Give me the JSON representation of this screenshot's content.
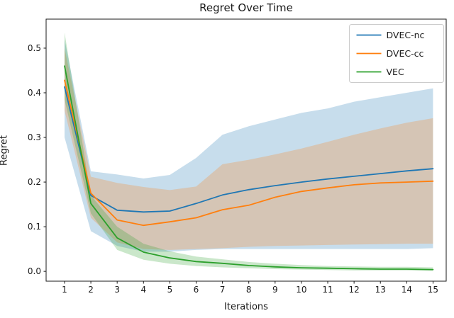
{
  "figure": {
    "title": "Regret Over Time",
    "xlabel": "Iterations",
    "ylabel": "Regret"
  },
  "chart_data": {
    "type": "line",
    "title": "Regret Over Time",
    "xlabel": "Iterations",
    "ylabel": "Regret",
    "grid": false,
    "legend_position": "upper right",
    "xlim": [
      0.3,
      15.5
    ],
    "ylim": [
      -0.022,
      0.565
    ],
    "xticks": [
      1,
      2,
      3,
      4,
      5,
      6,
      7,
      8,
      9,
      10,
      11,
      12,
      13,
      14,
      15
    ],
    "xtick_labels": [
      "1",
      "2",
      "3",
      "4",
      "5",
      "6",
      "7",
      "8",
      "9",
      "10",
      "11",
      "12",
      "13",
      "14",
      "15"
    ],
    "yticks": [
      0.0,
      0.1,
      0.2,
      0.3,
      0.4,
      0.5
    ],
    "ytick_labels": [
      "0.0",
      "0.1",
      "0.2",
      "0.3",
      "0.4",
      "0.5"
    ],
    "x": [
      1,
      2,
      3,
      4,
      5,
      6,
      7,
      8,
      9,
      10,
      11,
      12,
      13,
      14,
      15
    ],
    "series": [
      {
        "name": "DVEC-nc",
        "color": "#1f77b4",
        "band_alpha": 0.25,
        "values": [
          0.413,
          0.17,
          0.137,
          0.133,
          0.135,
          0.152,
          0.171,
          0.183,
          0.192,
          0.2,
          0.207,
          0.213,
          0.219,
          0.225,
          0.23
        ],
        "band_upper": [
          0.52,
          0.224,
          0.217,
          0.208,
          0.216,
          0.254,
          0.306,
          0.325,
          0.34,
          0.355,
          0.365,
          0.38,
          0.39,
          0.4,
          0.41
        ],
        "band_lower": [
          0.3,
          0.09,
          0.057,
          0.044,
          0.044,
          0.048,
          0.05,
          0.05,
          0.05,
          0.05,
          0.05,
          0.05,
          0.05,
          0.05,
          0.052
        ]
      },
      {
        "name": "DVEC-cc",
        "color": "#ff7f0e",
        "band_alpha": 0.25,
        "values": [
          0.428,
          0.175,
          0.115,
          0.103,
          0.111,
          0.12,
          0.138,
          0.148,
          0.166,
          0.179,
          0.187,
          0.194,
          0.198,
          0.2,
          0.202
        ],
        "band_upper": [
          0.5,
          0.212,
          0.198,
          0.189,
          0.182,
          0.19,
          0.24,
          0.25,
          0.262,
          0.275,
          0.29,
          0.306,
          0.32,
          0.333,
          0.343
        ],
        "band_lower": [
          0.36,
          0.12,
          0.065,
          0.05,
          0.048,
          0.05,
          0.052,
          0.055,
          0.057,
          0.058,
          0.059,
          0.06,
          0.061,
          0.062,
          0.062
        ]
      },
      {
        "name": "VEC",
        "color": "#2ca02c",
        "band_alpha": 0.25,
        "values": [
          0.46,
          0.152,
          0.075,
          0.043,
          0.03,
          0.022,
          0.018,
          0.013,
          0.01,
          0.008,
          0.007,
          0.006,
          0.005,
          0.005,
          0.004
        ],
        "band_upper": [
          0.535,
          0.17,
          0.1,
          0.062,
          0.045,
          0.033,
          0.027,
          0.021,
          0.017,
          0.014,
          0.012,
          0.011,
          0.01,
          0.01,
          0.009
        ],
        "band_lower": [
          0.385,
          0.13,
          0.048,
          0.026,
          0.017,
          0.012,
          0.009,
          0.007,
          0.005,
          0.004,
          0.003,
          0.002,
          0.002,
          0.002,
          0.001
        ]
      }
    ],
    "colors": {
      "spine": "#1a1a1a",
      "tick_label": "#1a1a1a",
      "legend_border": "#cccccc",
      "legend_bg": "#ffffff"
    }
  }
}
